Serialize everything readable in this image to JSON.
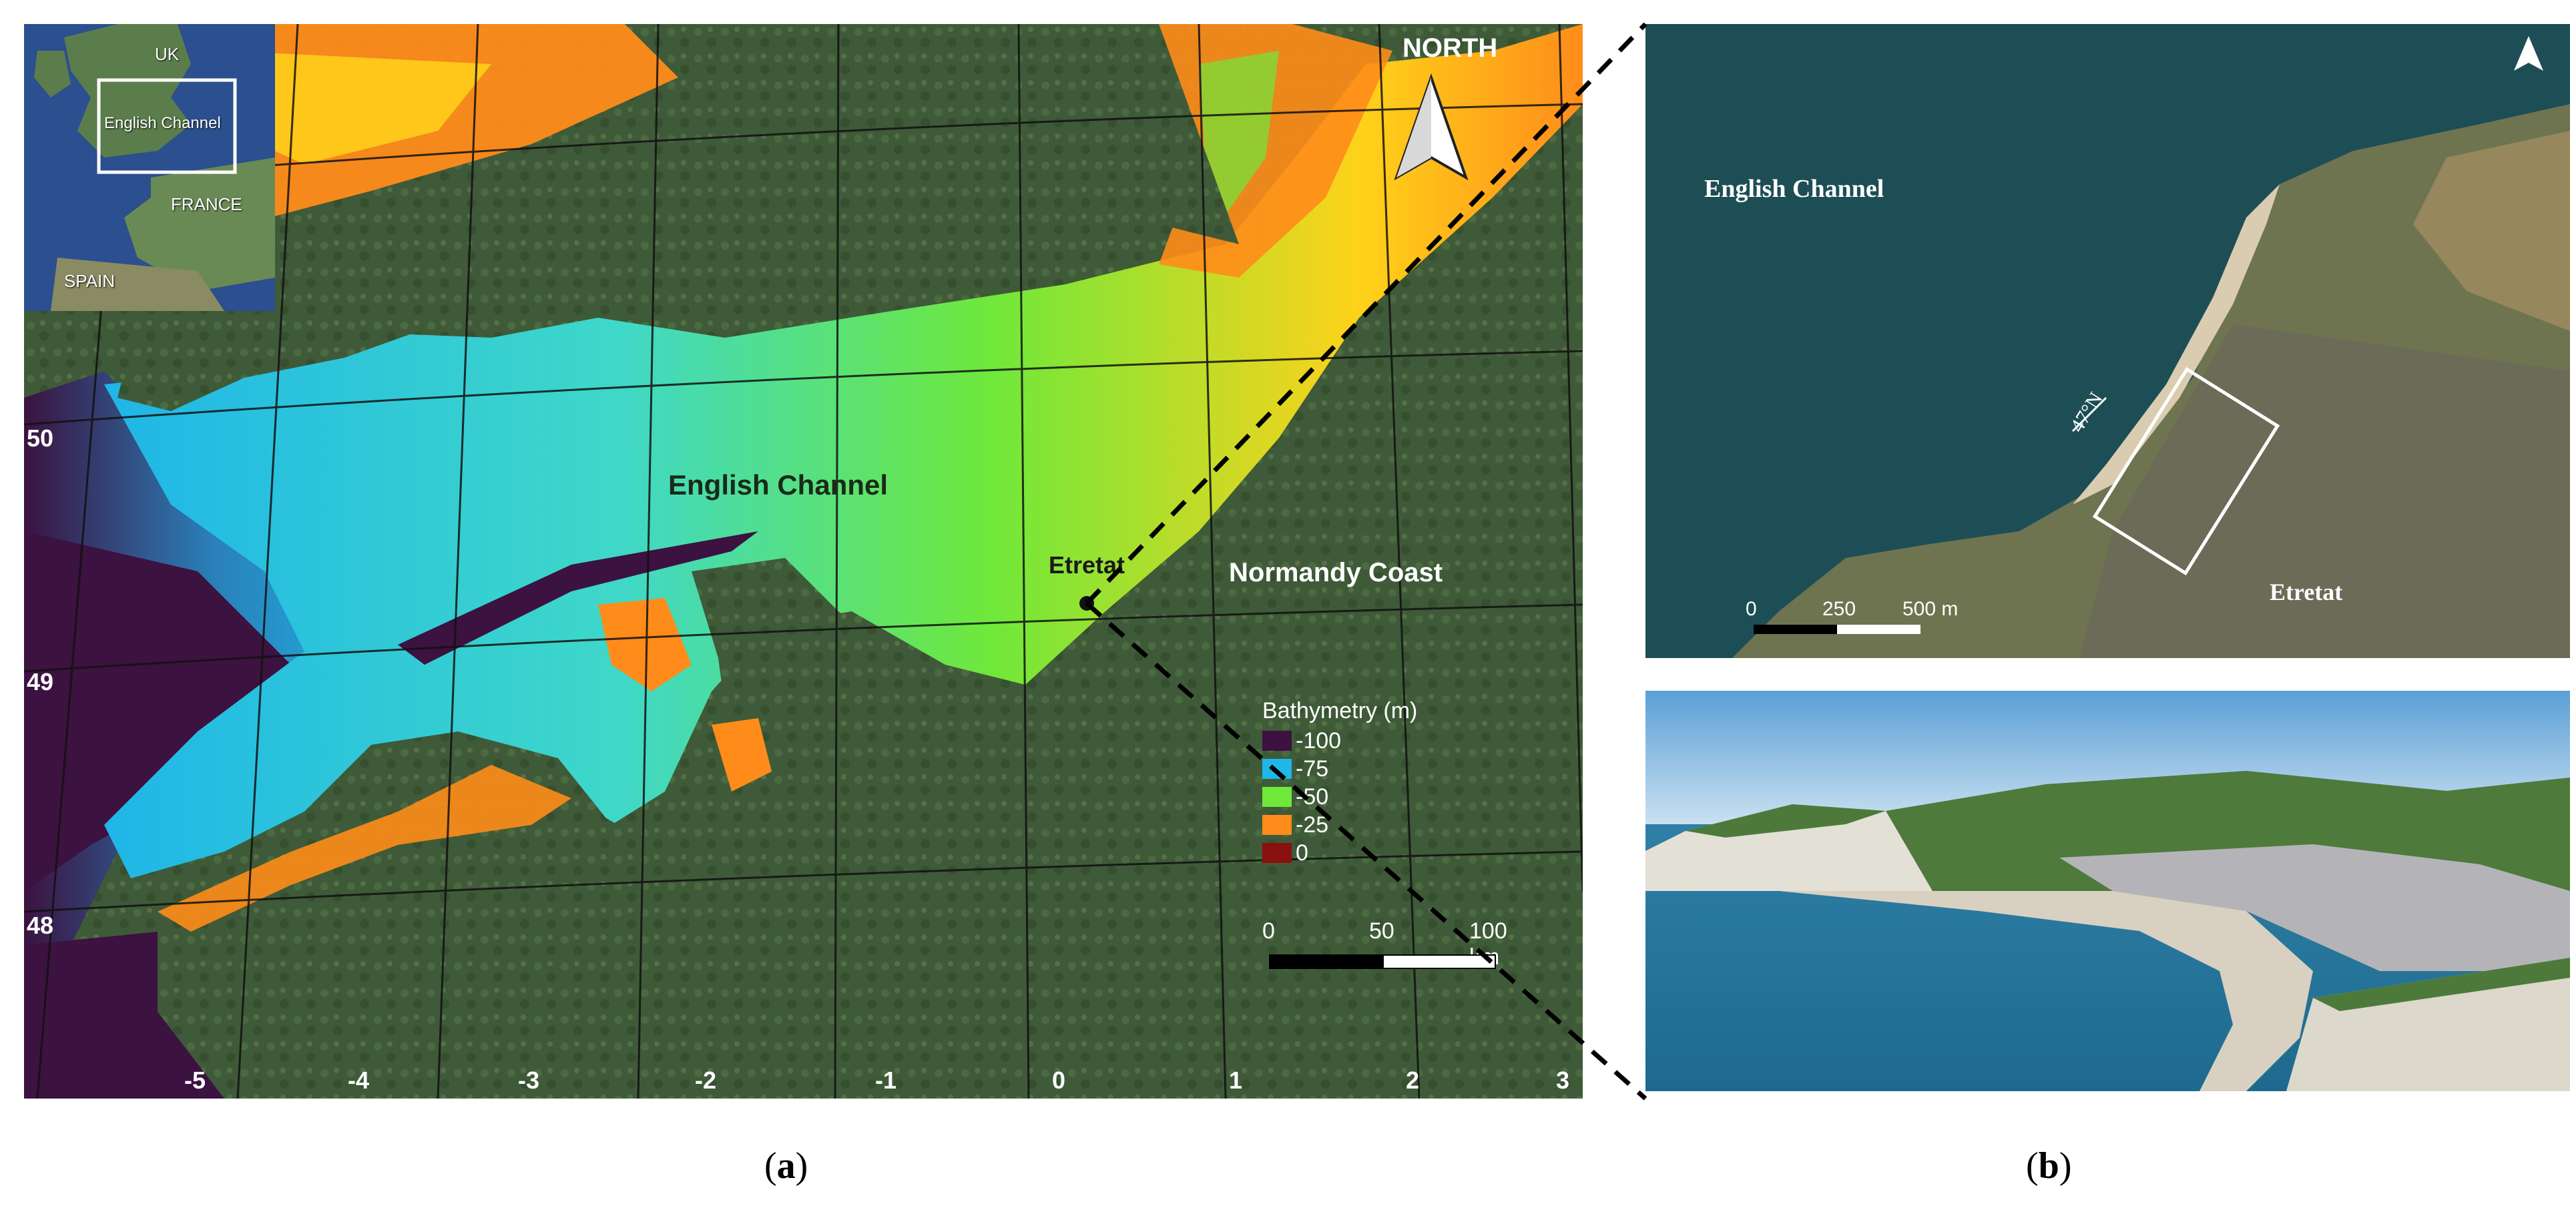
{
  "panel_a": {
    "inset": {
      "uk": "UK",
      "english_channel": "English Channel",
      "france": "FRANCE",
      "spain": "SPAIN"
    },
    "labels": {
      "english_channel": "English Channel",
      "normandy_coast": "Normandy Coast",
      "etretat": "Etretat",
      "north": "NORTH"
    },
    "latitudes": [
      "50",
      "49",
      "48"
    ],
    "longitudes": [
      "-5",
      "-4",
      "-3",
      "-2",
      "-1",
      "0",
      "1",
      "2",
      "3"
    ],
    "legend": {
      "title": "Bathymetry (m)",
      "items": [
        {
          "value": "-100",
          "color": "#3b1240"
        },
        {
          "value": "-75",
          "color": "#1fb6e8"
        },
        {
          "value": "-50",
          "color": "#6fe83a"
        },
        {
          "value": "-25",
          "color": "#ff8c1a"
        },
        {
          "value": "0",
          "color": "#8b1010"
        }
      ]
    },
    "scale": {
      "ticks": [
        "0",
        "50",
        "100 km"
      ]
    }
  },
  "panel_b": {
    "satellite": {
      "english_channel": "English Channel",
      "etretat": "Etretat",
      "bearing": "47°N",
      "scale_ticks": [
        "0",
        "250",
        "500 m"
      ]
    }
  },
  "captions": {
    "a": "a",
    "b": "b"
  },
  "colors": {
    "deep_water": "#3b1240",
    "ocean_blue": "#2b4f8f",
    "land_green": "#3f5a38",
    "sea_satellite": "#1e4e55"
  }
}
